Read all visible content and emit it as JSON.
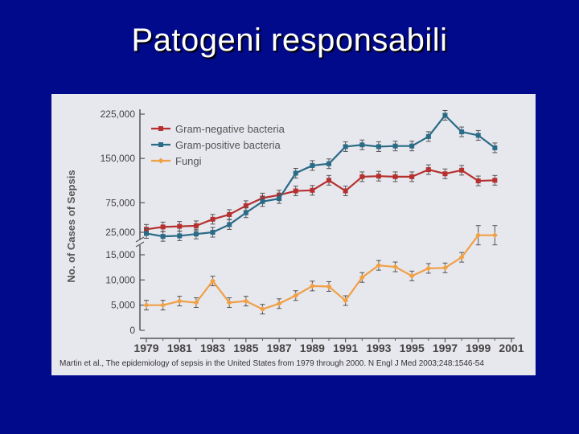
{
  "slide": {
    "title": "Patogeni responsabili"
  },
  "colors": {
    "background": "#000a8a",
    "panel": "#e7e7ee",
    "gram_negative": "#b5302f",
    "gram_positive": "#2a6b86",
    "fungi": "#f0a045",
    "axis": "#555555"
  },
  "citation": "Martin et al., The epidemiology of sepsis in the United States from 1979 through 2000. N Engl J Med 2003;248:1546-54",
  "chart_data": {
    "type": "line",
    "title": "",
    "xlabel": "",
    "ylabel": "No. of Cases of Sepsis",
    "x_ticks": [
      "1979",
      "1981",
      "1983",
      "1985",
      "1987",
      "1989",
      "1991",
      "1993",
      "1995",
      "1997",
      "1999",
      "2001"
    ],
    "y_ticks": [
      "0",
      "5,000",
      "10,000",
      "15,000",
      "25,000",
      "75,000",
      "150,000",
      "225,000"
    ],
    "y_axis_break": "broken y-axis between 15,000 and 25,000",
    "grid": false,
    "legend_position": "top-left",
    "x": [
      1979,
      1980,
      1981,
      1982,
      1983,
      1984,
      1985,
      1986,
      1987,
      1988,
      1989,
      1990,
      1991,
      1992,
      1993,
      1994,
      1995,
      1996,
      1997,
      1998,
      1999,
      2000
    ],
    "series": [
      {
        "name": "Gram-negative bacteria",
        "color": "#b5302f",
        "values": [
          30000,
          34000,
          35000,
          36000,
          47000,
          55000,
          70000,
          83000,
          88000,
          95000,
          96000,
          113000,
          95000,
          119000,
          120000,
          119000,
          119000,
          131000,
          124000,
          130000,
          112000,
          113000
        ]
      },
      {
        "name": "Gram-positive bacteria",
        "color": "#2a6b86",
        "values": [
          23000,
          18000,
          19000,
          22000,
          25000,
          38000,
          58000,
          77000,
          82000,
          125000,
          138000,
          141000,
          170000,
          173000,
          170000,
          171000,
          171000,
          187000,
          223000,
          195000,
          189000,
          168000
        ]
      },
      {
        "name": "Fungi",
        "color": "#f0a045",
        "values": [
          5000,
          5000,
          5800,
          5500,
          9800,
          5500,
          5800,
          4200,
          5300,
          6900,
          8800,
          8700,
          5900,
          10500,
          12900,
          12600,
          10800,
          12300,
          12400,
          14500,
          20000,
          20000
        ]
      }
    ]
  }
}
